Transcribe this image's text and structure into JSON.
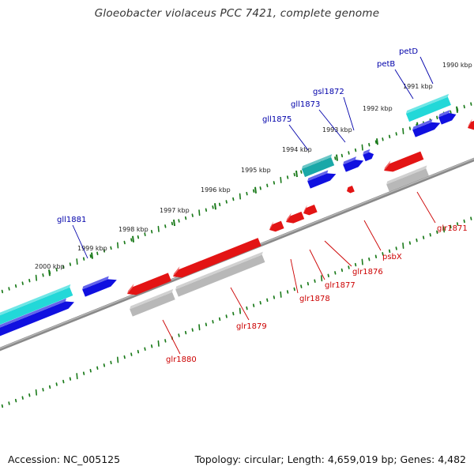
{
  "title": "Gloeobacter violaceus PCC 7421, complete genome",
  "footer": {
    "accession": "Accession: NC_005125",
    "summary": "Topology: circular; Length: 4,659,019 bp; Genes: 4,482"
  },
  "colors": {
    "backbone": "#8a8a8a",
    "ticks": "#1a7a1a",
    "forward_gene": "#1010e0",
    "forward_cds_cyan": "#22d8d8",
    "forward_cds_teal": "#1aa8a8",
    "reverse_gene": "#e31414",
    "reverse_cds": "#b8b8b8",
    "forward_label": "#0000aa",
    "reverse_label": "#cc0000"
  },
  "kbp_markers": [
    "1990 kbp",
    "1991 kbp",
    "1992 kbp",
    "1993 kbp",
    "1994 kbp",
    "1995 kbp",
    "1996 kbp",
    "1997 kbp",
    "1998 kbp",
    "1999 kbp",
    "2000 kbp"
  ],
  "forward_gene_labels": [
    "petD",
    "petB",
    "gsl1872",
    "gll1873",
    "gll1875",
    "gll1881"
  ],
  "reverse_gene_labels": [
    "glr1871",
    "psbX",
    "glr1876",
    "glr1877",
    "glr1878",
    "glr1879",
    "glr1880"
  ]
}
